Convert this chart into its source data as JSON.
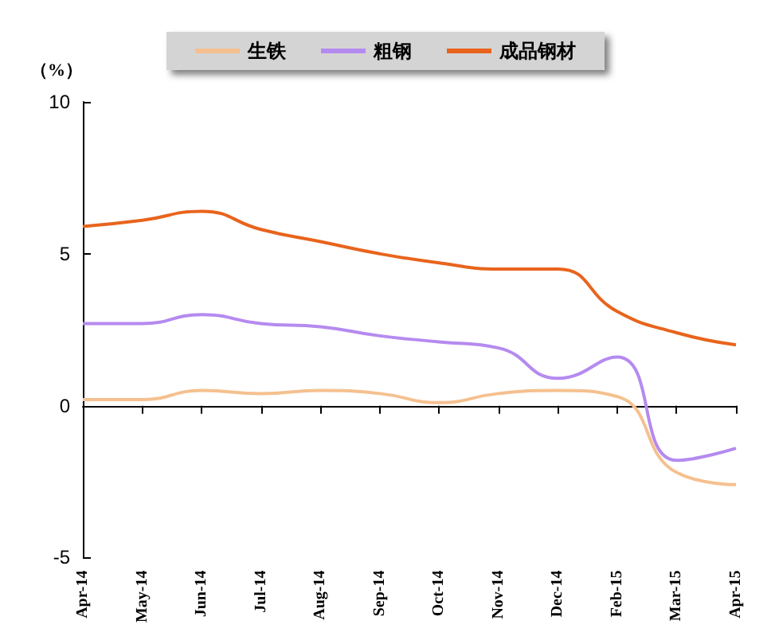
{
  "chart_data": {
    "type": "line",
    "ylabel": "（%）",
    "categories": [
      "Apr-14",
      "May-14",
      "Jun-14",
      "Jul-14",
      "Aug-14",
      "Sep-14",
      "Oct-14",
      "Nov-14",
      "Dec-14",
      "Feb-15",
      "Mar-15",
      "Apr-15"
    ],
    "series": [
      {
        "name": "生铁",
        "color": "#f5c08f",
        "values": [
          0.2,
          0.2,
          0.5,
          0.4,
          0.5,
          0.4,
          0.1,
          0.4,
          0.5,
          0.3,
          -2.2,
          -2.6
        ]
      },
      {
        "name": "粗钢",
        "color": "#b58af0",
        "values": [
          2.7,
          2.7,
          3.0,
          2.7,
          2.6,
          2.3,
          2.1,
          1.9,
          0.9,
          1.6,
          -1.8,
          -1.4
        ]
      },
      {
        "name": "成品钢材",
        "color": "#e8641c",
        "values": [
          5.9,
          6.1,
          6.4,
          5.8,
          5.4,
          5.0,
          4.7,
          4.5,
          4.5,
          3.1,
          2.4,
          2.0
        ]
      }
    ],
    "ylim": [
      -5,
      10
    ],
    "yticks": [
      -5,
      0,
      5,
      10
    ],
    "legend": "top",
    "marker": "none",
    "line_style": "solid"
  }
}
